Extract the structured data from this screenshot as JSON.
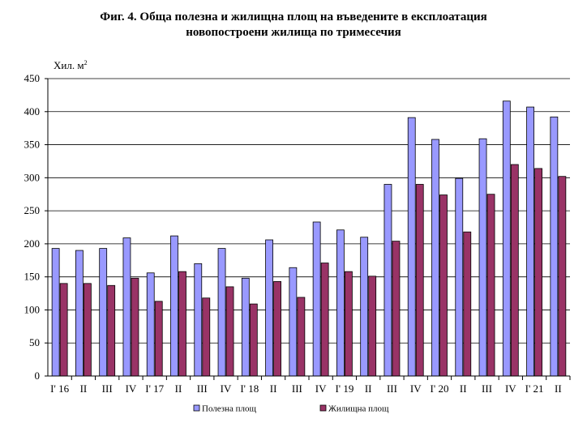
{
  "chart_data": {
    "type": "bar",
    "title_line1": "Фиг. 4. Обща полезна и жилищна площ на въведените в експлоатация",
    "title_line2": "новопостроени жилища по тримесечия",
    "ylabel": "Хил. м",
    "ylabel_sup": "2",
    "ylim": [
      0,
      450
    ],
    "yticks": [
      0,
      50,
      100,
      150,
      200,
      250,
      300,
      350,
      400,
      450
    ],
    "categories": [
      "I' 16",
      "II",
      "III",
      "IV",
      "I' 17",
      "II",
      "III",
      "IV",
      "I' 18",
      "II",
      "III",
      "IV",
      "I' 19",
      "II",
      "III",
      "IV",
      "I' 20",
      "II",
      "III",
      "IV",
      "I' 21",
      "II"
    ],
    "series": [
      {
        "name": "Полезна площ",
        "color": "#9999ff",
        "values": [
          193,
          190,
          193,
          209,
          156,
          212,
          170,
          193,
          148,
          206,
          164,
          233,
          221,
          210,
          290,
          391,
          358,
          299,
          359,
          416,
          407,
          392
        ]
      },
      {
        "name": "Жилищна площ",
        "color": "#993366",
        "values": [
          140,
          140,
          137,
          148,
          113,
          158,
          118,
          135,
          109,
          143,
          119,
          171,
          158,
          151,
          204,
          290,
          274,
          218,
          275,
          320,
          314,
          302
        ]
      }
    ],
    "grid": true,
    "legend_position": "bottom"
  }
}
